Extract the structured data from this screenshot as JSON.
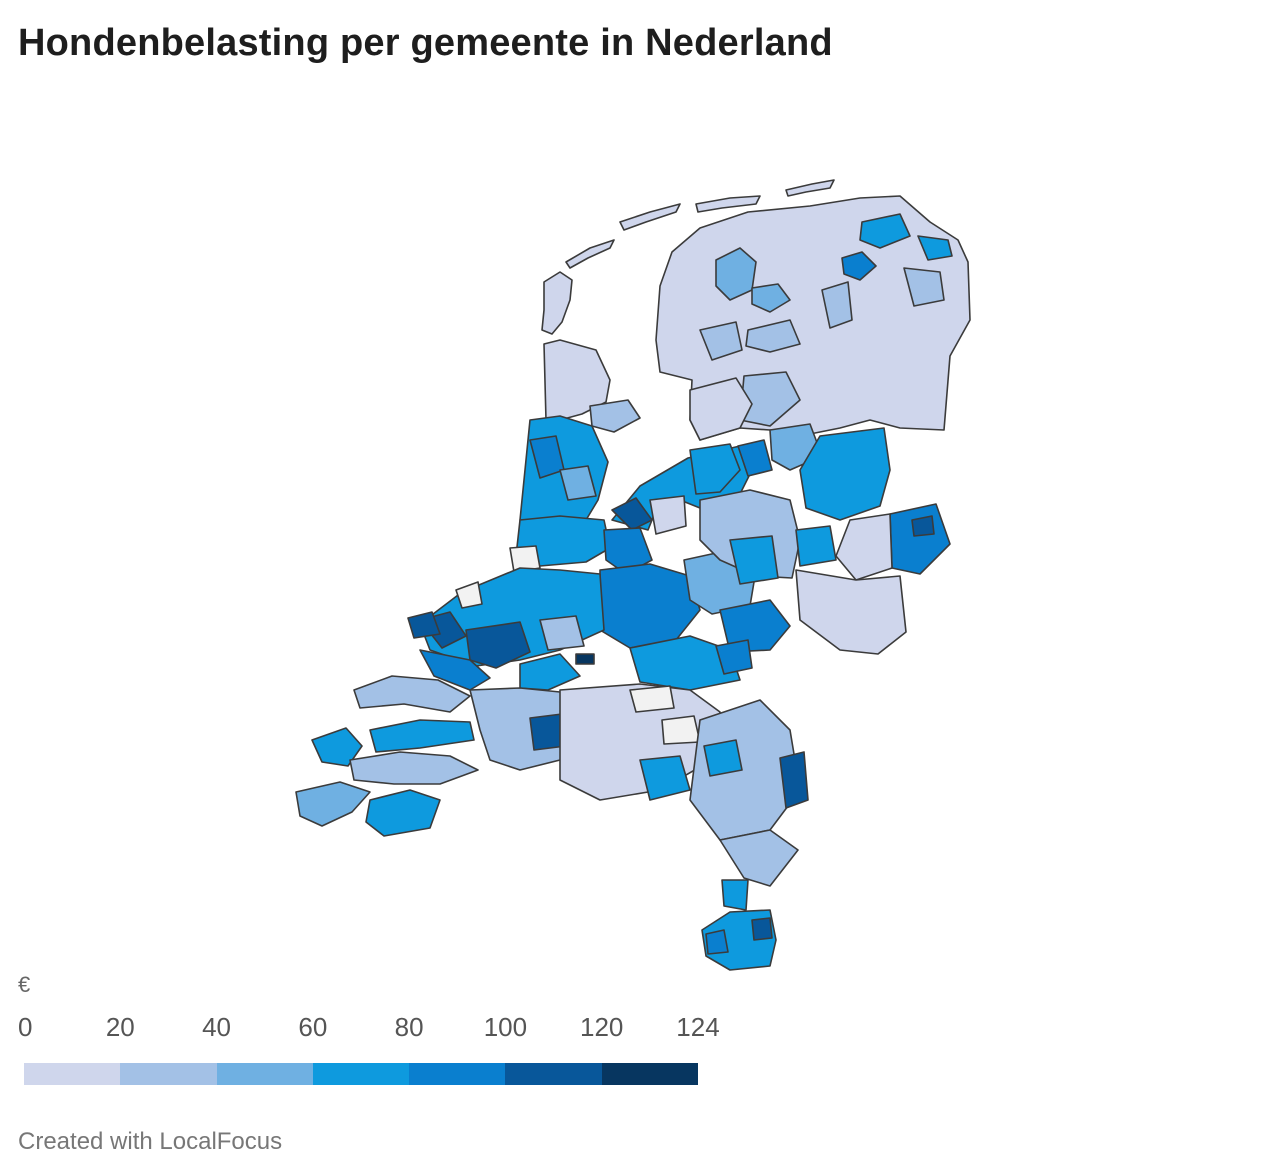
{
  "title": "Hondenbelasting per gemeente in Nederland",
  "legend": {
    "unit": "€",
    "ticks": [
      "0",
      "20",
      "40",
      "60",
      "80",
      "100",
      "120",
      "124"
    ],
    "tick_values": [
      0,
      20,
      40,
      60,
      80,
      100,
      120,
      124
    ],
    "colors": [
      "#cfd6ec",
      "#a3c1e6",
      "#6fb0e2",
      "#0e9ade",
      "#0a7fcf",
      "#08579a",
      "#073660"
    ]
  },
  "map": {
    "no_data_color": "#f2f2f2",
    "border_color": "#3b3b3b"
  },
  "credit": "Created with LocalFocus"
}
